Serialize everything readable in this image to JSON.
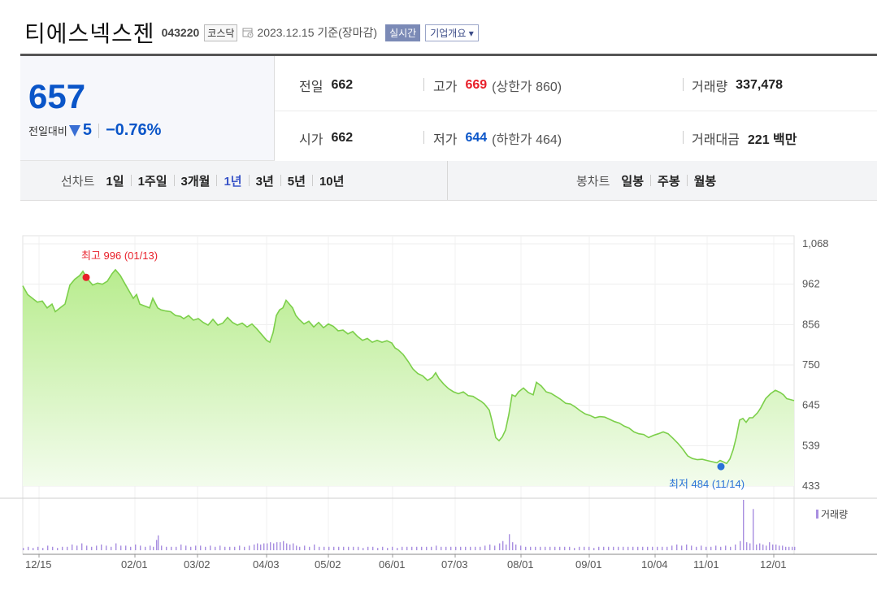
{
  "header": {
    "company_name": "티에스넥스젠",
    "stock_code": "043220",
    "market": "코스닥",
    "base_date": "2023.12.15 기준(장마감)",
    "realtime_label": "실시간",
    "company_info_label": "기업개요 ▾"
  },
  "quote": {
    "price": "657",
    "change_label": "전일대비",
    "change_amount": "5",
    "change_rate": "−0.76%",
    "prev_close": {
      "label": "전일",
      "value": "662"
    },
    "high": {
      "label": "고가",
      "value": "669",
      "sub": "(상한가 860)"
    },
    "volume": {
      "label": "거래량",
      "value": "337,478"
    },
    "open": {
      "label": "시가",
      "value": "662"
    },
    "low": {
      "label": "저가",
      "value": "644",
      "sub": "(하한가 464)"
    },
    "trade_value": {
      "label": "거래대금",
      "value": "221 백만"
    }
  },
  "period_tabs": {
    "line_label": "선차트",
    "line_periods": [
      "1일",
      "1주일",
      "3개월",
      "1년",
      "3년",
      "5년",
      "10년"
    ],
    "active_period": "1년",
    "candle_label": "봉차트",
    "candle_periods": [
      "일봉",
      "주봉",
      "월봉"
    ]
  },
  "colors": {
    "price_up": "#e8202a",
    "price_down": "#0a55c8",
    "line": "#7ccf4a",
    "area_top": "#b8ec8e",
    "area_bottom": "#f3fced",
    "volume_bar": "#a88ee0"
  },
  "chart_data": {
    "type": "area",
    "ylim": [
      433,
      1068
    ],
    "yticks": [
      "1,068",
      "962",
      "856",
      "750",
      "645",
      "539",
      "433"
    ],
    "xticks": [
      "12/15",
      "02/01",
      "03/02",
      "04/03",
      "05/02",
      "06/01",
      "07/03",
      "08/01",
      "09/01",
      "10/04",
      "11/01",
      "12/01"
    ],
    "grid": true,
    "high_annotation": "최고 996 (01/13)",
    "low_annotation": "최저 484 (11/14)",
    "volume_legend": "거래량",
    "price_series": [
      [
        0,
        958
      ],
      [
        6,
        935
      ],
      [
        12,
        925
      ],
      [
        18,
        915
      ],
      [
        24,
        918
      ],
      [
        30,
        900
      ],
      [
        36,
        910
      ],
      [
        40,
        890
      ],
      [
        46,
        900
      ],
      [
        52,
        910
      ],
      [
        58,
        960
      ],
      [
        64,
        975
      ],
      [
        70,
        985
      ],
      [
        74,
        996
      ],
      [
        80,
        975
      ],
      [
        86,
        960
      ],
      [
        92,
        965
      ],
      [
        98,
        962
      ],
      [
        104,
        970
      ],
      [
        110,
        990
      ],
      [
        114,
        1000
      ],
      [
        120,
        985
      ],
      [
        126,
        962
      ],
      [
        132,
        940
      ],
      [
        136,
        925
      ],
      [
        140,
        935
      ],
      [
        144,
        910
      ],
      [
        150,
        905
      ],
      [
        156,
        900
      ],
      [
        160,
        925
      ],
      [
        166,
        900
      ],
      [
        170,
        895
      ],
      [
        176,
        892
      ],
      [
        182,
        890
      ],
      [
        188,
        880
      ],
      [
        194,
        878
      ],
      [
        198,
        872
      ],
      [
        204,
        880
      ],
      [
        210,
        868
      ],
      [
        216,
        872
      ],
      [
        222,
        862
      ],
      [
        228,
        855
      ],
      [
        234,
        870
      ],
      [
        240,
        855
      ],
      [
        246,
        860
      ],
      [
        252,
        875
      ],
      [
        258,
        862
      ],
      [
        264,
        855
      ],
      [
        270,
        860
      ],
      [
        276,
        850
      ],
      [
        282,
        858
      ],
      [
        288,
        845
      ],
      [
        294,
        830
      ],
      [
        300,
        815
      ],
      [
        304,
        810
      ],
      [
        308,
        835
      ],
      [
        312,
        880
      ],
      [
        316,
        895
      ],
      [
        320,
        900
      ],
      [
        324,
        920
      ],
      [
        328,
        910
      ],
      [
        332,
        900
      ],
      [
        336,
        880
      ],
      [
        340,
        870
      ],
      [
        346,
        858
      ],
      [
        352,
        865
      ],
      [
        358,
        850
      ],
      [
        364,
        862
      ],
      [
        370,
        848
      ],
      [
        376,
        858
      ],
      [
        382,
        852
      ],
      [
        388,
        840
      ],
      [
        394,
        842
      ],
      [
        400,
        832
      ],
      [
        406,
        838
      ],
      [
        412,
        825
      ],
      [
        418,
        815
      ],
      [
        424,
        820
      ],
      [
        430,
        810
      ],
      [
        436,
        815
      ],
      [
        442,
        810
      ],
      [
        448,
        814
      ],
      [
        454,
        808
      ],
      [
        458,
        795
      ],
      [
        462,
        790
      ],
      [
        468,
        778
      ],
      [
        474,
        760
      ],
      [
        480,
        740
      ],
      [
        486,
        728
      ],
      [
        492,
        722
      ],
      [
        498,
        710
      ],
      [
        504,
        718
      ],
      [
        508,
        730
      ],
      [
        512,
        715
      ],
      [
        518,
        700
      ],
      [
        524,
        688
      ],
      [
        530,
        680
      ],
      [
        536,
        675
      ],
      [
        542,
        680
      ],
      [
        548,
        670
      ],
      [
        554,
        668
      ],
      [
        560,
        660
      ],
      [
        564,
        655
      ],
      [
        568,
        648
      ],
      [
        574,
        632
      ],
      [
        578,
        598
      ],
      [
        582,
        560
      ],
      [
        586,
        552
      ],
      [
        590,
        562
      ],
      [
        594,
        580
      ],
      [
        598,
        620
      ],
      [
        602,
        672
      ],
      [
        606,
        668
      ],
      [
        610,
        680
      ],
      [
        616,
        690
      ],
      [
        622,
        678
      ],
      [
        628,
        672
      ],
      [
        632,
        705
      ],
      [
        638,
        695
      ],
      [
        644,
        680
      ],
      [
        650,
        676
      ],
      [
        656,
        668
      ],
      [
        662,
        660
      ],
      [
        668,
        650
      ],
      [
        674,
        648
      ],
      [
        680,
        640
      ],
      [
        686,
        630
      ],
      [
        692,
        622
      ],
      [
        698,
        618
      ],
      [
        704,
        612
      ],
      [
        710,
        615
      ],
      [
        716,
        614
      ],
      [
        722,
        608
      ],
      [
        728,
        602
      ],
      [
        734,
        598
      ],
      [
        740,
        590
      ],
      [
        746,
        585
      ],
      [
        752,
        575
      ],
      [
        758,
        570
      ],
      [
        764,
        568
      ],
      [
        770,
        560
      ],
      [
        776,
        566
      ],
      [
        782,
        570
      ],
      [
        788,
        575
      ],
      [
        794,
        570
      ],
      [
        800,
        558
      ],
      [
        806,
        545
      ],
      [
        812,
        530
      ],
      [
        818,
        512
      ],
      [
        824,
        505
      ],
      [
        830,
        502
      ],
      [
        836,
        503
      ],
      [
        842,
        500
      ],
      [
        848,
        497
      ],
      [
        854,
        494
      ],
      [
        858,
        500
      ],
      [
        862,
        496
      ],
      [
        866,
        492
      ],
      [
        870,
        504
      ],
      [
        874,
        528
      ],
      [
        878,
        562
      ],
      [
        882,
        606
      ],
      [
        886,
        610
      ],
      [
        890,
        600
      ],
      [
        894,
        612
      ],
      [
        898,
        612
      ],
      [
        904,
        625
      ],
      [
        908,
        638
      ],
      [
        914,
        662
      ],
      [
        920,
        675
      ],
      [
        926,
        684
      ],
      [
        932,
        678
      ],
      [
        936,
        672
      ],
      [
        940,
        662
      ],
      [
        944,
        660
      ],
      [
        949,
        657
      ]
    ],
    "volume_series": [
      [
        0,
        2
      ],
      [
        6,
        3
      ],
      [
        12,
        2
      ],
      [
        18,
        3
      ],
      [
        24,
        2
      ],
      [
        30,
        4
      ],
      [
        36,
        3
      ],
      [
        42,
        2
      ],
      [
        48,
        3
      ],
      [
        54,
        3
      ],
      [
        60,
        5
      ],
      [
        66,
        4
      ],
      [
        72,
        6
      ],
      [
        78,
        4
      ],
      [
        84,
        3
      ],
      [
        90,
        4
      ],
      [
        96,
        5
      ],
      [
        102,
        4
      ],
      [
        108,
        3
      ],
      [
        114,
        6
      ],
      [
        120,
        4
      ],
      [
        126,
        4
      ],
      [
        132,
        3
      ],
      [
        138,
        5
      ],
      [
        144,
        4
      ],
      [
        150,
        3
      ],
      [
        156,
        4
      ],
      [
        160,
        3
      ],
      [
        164,
        9
      ],
      [
        166,
        13
      ],
      [
        170,
        4
      ],
      [
        176,
        3
      ],
      [
        182,
        3
      ],
      [
        188,
        3
      ],
      [
        194,
        5
      ],
      [
        200,
        4
      ],
      [
        206,
        3
      ],
      [
        212,
        4
      ],
      [
        218,
        4
      ],
      [
        224,
        3
      ],
      [
        230,
        4
      ],
      [
        236,
        3
      ],
      [
        242,
        4
      ],
      [
        248,
        3
      ],
      [
        254,
        3
      ],
      [
        260,
        3
      ],
      [
        266,
        4
      ],
      [
        272,
        3
      ],
      [
        278,
        4
      ],
      [
        284,
        5
      ],
      [
        288,
        6
      ],
      [
        292,
        5
      ],
      [
        296,
        6
      ],
      [
        300,
        6
      ],
      [
        304,
        7
      ],
      [
        308,
        6
      ],
      [
        312,
        7
      ],
      [
        316,
        7
      ],
      [
        320,
        8
      ],
      [
        324,
        6
      ],
      [
        328,
        5
      ],
      [
        332,
        6
      ],
      [
        336,
        4
      ],
      [
        340,
        3
      ],
      [
        346,
        4
      ],
      [
        352,
        3
      ],
      [
        358,
        5
      ],
      [
        364,
        3
      ],
      [
        370,
        3
      ],
      [
        376,
        3
      ],
      [
        382,
        3
      ],
      [
        388,
        3
      ],
      [
        394,
        3
      ],
      [
        400,
        3
      ],
      [
        406,
        3
      ],
      [
        412,
        3
      ],
      [
        418,
        2
      ],
      [
        424,
        3
      ],
      [
        430,
        3
      ],
      [
        436,
        2
      ],
      [
        442,
        3
      ],
      [
        448,
        2
      ],
      [
        454,
        3
      ],
      [
        460,
        2
      ],
      [
        466,
        3
      ],
      [
        472,
        3
      ],
      [
        478,
        3
      ],
      [
        484,
        3
      ],
      [
        490,
        3
      ],
      [
        496,
        3
      ],
      [
        502,
        3
      ],
      [
        508,
        4
      ],
      [
        514,
        3
      ],
      [
        520,
        3
      ],
      [
        526,
        3
      ],
      [
        532,
        3
      ],
      [
        538,
        3
      ],
      [
        544,
        3
      ],
      [
        550,
        3
      ],
      [
        556,
        3
      ],
      [
        562,
        3
      ],
      [
        568,
        4
      ],
      [
        574,
        5
      ],
      [
        580,
        4
      ],
      [
        586,
        6
      ],
      [
        590,
        8
      ],
      [
        594,
        5
      ],
      [
        598,
        14
      ],
      [
        602,
        7
      ],
      [
        606,
        5
      ],
      [
        612,
        4
      ],
      [
        618,
        3
      ],
      [
        624,
        3
      ],
      [
        630,
        3
      ],
      [
        636,
        3
      ],
      [
        642,
        3
      ],
      [
        648,
        3
      ],
      [
        654,
        3
      ],
      [
        660,
        3
      ],
      [
        666,
        3
      ],
      [
        672,
        3
      ],
      [
        678,
        2
      ],
      [
        684,
        3
      ],
      [
        690,
        3
      ],
      [
        696,
        3
      ],
      [
        702,
        2
      ],
      [
        708,
        3
      ],
      [
        714,
        3
      ],
      [
        720,
        3
      ],
      [
        726,
        3
      ],
      [
        732,
        3
      ],
      [
        738,
        3
      ],
      [
        744,
        3
      ],
      [
        750,
        3
      ],
      [
        756,
        3
      ],
      [
        762,
        3
      ],
      [
        768,
        3
      ],
      [
        774,
        3
      ],
      [
        780,
        3
      ],
      [
        786,
        3
      ],
      [
        792,
        3
      ],
      [
        798,
        4
      ],
      [
        804,
        5
      ],
      [
        810,
        4
      ],
      [
        816,
        5
      ],
      [
        822,
        4
      ],
      [
        828,
        3
      ],
      [
        834,
        4
      ],
      [
        840,
        3
      ],
      [
        846,
        3
      ],
      [
        852,
        4
      ],
      [
        858,
        3
      ],
      [
        864,
        4
      ],
      [
        870,
        3
      ],
      [
        876,
        5
      ],
      [
        882,
        8
      ],
      [
        886,
        44
      ],
      [
        890,
        7
      ],
      [
        894,
        6
      ],
      [
        898,
        36
      ],
      [
        902,
        5
      ],
      [
        906,
        6
      ],
      [
        910,
        5
      ],
      [
        914,
        4
      ],
      [
        918,
        7
      ],
      [
        922,
        5
      ],
      [
        926,
        5
      ],
      [
        930,
        4
      ],
      [
        934,
        4
      ],
      [
        938,
        3
      ],
      [
        942,
        3
      ],
      [
        946,
        3
      ],
      [
        949,
        3
      ]
    ]
  }
}
